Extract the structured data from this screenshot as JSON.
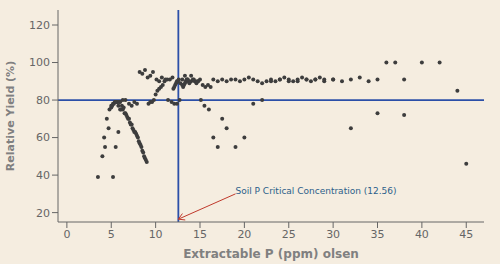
{
  "chart_data": {
    "type": "scatter",
    "xlabel": "Extractable P (ppm) olsen",
    "ylabel": "Relative Yield (%)",
    "xlim": [
      -1,
      47
    ],
    "ylim": [
      15,
      128
    ],
    "xticks": [
      0,
      5,
      10,
      15,
      20,
      25,
      30,
      35,
      40,
      45
    ],
    "yticks": [
      20,
      40,
      60,
      80,
      100,
      120
    ],
    "grid": false,
    "color": "#3d3d3d",
    "background_color": "#f5ede0",
    "hline": {
      "y": 80,
      "color": "#2b4fa8"
    },
    "vline": {
      "x": 12.56,
      "color": "#2b4fa8"
    },
    "annotations": [
      {
        "text": "Soil P Critical Concentration (12.56)",
        "x": 12.56,
        "y": 16.5,
        "text_x": 19,
        "text_y": 30,
        "color": "#2c5f8a",
        "arrow_color": "#c0392b"
      }
    ],
    "x": [
      3.5,
      4.0,
      4.2,
      4.5,
      4.8,
      5.0,
      5.0,
      5.1,
      5.2,
      5.3,
      5.4,
      5.5,
      5.5,
      5.6,
      5.7,
      5.8,
      5.9,
      6.0,
      6.1,
      6.2,
      6.3,
      6.4,
      6.5,
      6.6,
      6.7,
      6.8,
      6.9,
      7.0,
      7.1,
      7.2,
      7.3,
      7.4,
      7.5,
      7.6,
      7.7,
      7.8,
      7.9,
      8.0,
      8.1,
      8.2,
      8.3,
      8.4,
      8.5,
      8.6,
      8.7,
      8.8,
      8.9,
      9.0,
      9.2,
      9.4,
      9.6,
      9.8,
      10.0,
      10.2,
      10.4,
      10.6,
      10.8,
      11.0,
      11.3,
      11.6,
      11.9,
      12.0,
      12.1,
      12.2,
      12.3,
      12.4,
      12.5,
      12.6,
      12.8,
      13.0,
      13.1,
      13.2,
      13.3,
      13.4,
      13.5,
      13.6,
      13.7,
      13.8,
      14.0,
      14.2,
      14.4,
      14.6,
      14.8,
      15.0,
      15.3,
      15.6,
      15.9,
      16.2,
      16.5,
      17.0,
      17.5,
      18.0,
      18.5,
      19.0,
      19.5,
      20.0,
      20.5,
      21.0,
      21.5,
      22.0,
      22.5,
      23.0,
      23.5,
      24.0,
      24.5,
      25.0,
      25.5,
      26.0,
      26.5,
      27.0,
      27.5,
      28.0,
      28.5,
      29.0,
      30.0,
      31.0,
      32.0,
      33.0,
      34.0,
      35.0,
      36.0,
      37.0,
      38.0,
      40.0,
      42.0,
      45.0,
      4.3,
      4.7,
      5.2,
      5.5,
      5.8,
      6.0,
      6.3,
      6.6,
      7.0,
      7.3,
      7.6,
      7.9,
      8.2,
      8.5,
      8.8,
      9.1,
      9.4,
      9.7,
      10.1,
      10.4,
      10.7,
      11.1,
      11.4,
      11.8,
      12.1,
      12.4,
      12.7,
      13.0,
      13.3,
      13.6,
      14.0,
      14.3,
      14.7,
      15.1,
      15.5,
      16.0,
      16.5,
      17.0,
      17.5,
      18.0,
      19.0,
      20.0,
      21.0,
      22.0,
      23.0,
      24.0,
      25.0,
      26.0,
      27.0,
      28.0,
      29.0,
      30.0,
      32.0,
      35.0,
      38.0,
      44.0
    ],
    "values": [
      39,
      50,
      60,
      70,
      75,
      76,
      77,
      77,
      78,
      78,
      79,
      79,
      79,
      79,
      79,
      77,
      79,
      79,
      75,
      77,
      75,
      76,
      73,
      73,
      72,
      71,
      70,
      70,
      68,
      67,
      67,
      65,
      64,
      63,
      63,
      62,
      61,
      60,
      58,
      57,
      56,
      55,
      53,
      52,
      50,
      49,
      48,
      47,
      78,
      79,
      79,
      80,
      83,
      85,
      86,
      87,
      88,
      90,
      91,
      91,
      92,
      86,
      87,
      88,
      89,
      90,
      90,
      91,
      89,
      88,
      87,
      88,
      89,
      90,
      91,
      91,
      90,
      89,
      90,
      91,
      90,
      89,
      90,
      91,
      88,
      87,
      88,
      87,
      91,
      90,
      91,
      90,
      91,
      91,
      90,
      91,
      92,
      91,
      90,
      89,
      90,
      91,
      90,
      91,
      92,
      91,
      90,
      91,
      92,
      91,
      90,
      91,
      92,
      91,
      91,
      90,
      91,
      92,
      90,
      91,
      100,
      100,
      91,
      100,
      100,
      46,
      55,
      65,
      39,
      55,
      63,
      75,
      80,
      80,
      78,
      77,
      79,
      78,
      95,
      94,
      96,
      92,
      93,
      95,
      91,
      90,
      92,
      91,
      80,
      79,
      78,
      78,
      80,
      91,
      93,
      91,
      93,
      91,
      90,
      80,
      77,
      75,
      60,
      55,
      70,
      65,
      55,
      60,
      78,
      80,
      90,
      91,
      90,
      90,
      91,
      91,
      90,
      91,
      65,
      73,
      72,
      85
    ]
  }
}
